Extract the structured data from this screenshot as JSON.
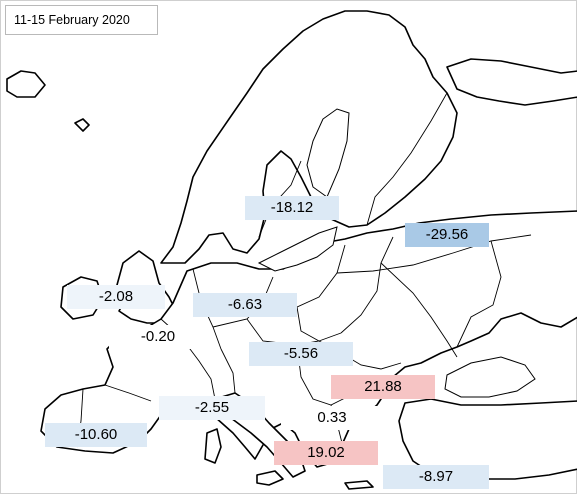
{
  "date_label": "11-15  February 2020",
  "colors": {
    "neg_light": "#dce9f5",
    "neg_faint": "#eef4fa",
    "neg_strong": "#a9c9e6",
    "pos": "#f6c4c4",
    "neutral": "#ffffff"
  },
  "regions": [
    {
      "id": "ireland-uk",
      "value": "-2.08",
      "tone": "neg_faint"
    },
    {
      "id": "france",
      "value": "-0.20",
      "tone": "neutral"
    },
    {
      "id": "germany",
      "value": "-6.63",
      "tone": "neg_light"
    },
    {
      "id": "nordic",
      "value": "-18.12",
      "tone": "neg_light"
    },
    {
      "id": "baltic-russia",
      "value": "-29.56",
      "tone": "neg_strong"
    },
    {
      "id": "austria-hungary",
      "value": "-5.56",
      "tone": "neg_light"
    },
    {
      "id": "italy",
      "value": "-2.55",
      "tone": "neg_faint"
    },
    {
      "id": "iberia",
      "value": "-10.60",
      "tone": "neg_light"
    },
    {
      "id": "balkans-romania",
      "value": "21.88",
      "tone": "pos"
    },
    {
      "id": "balkans-west",
      "value": "0.33",
      "tone": "neutral"
    },
    {
      "id": "greece",
      "value": "19.02",
      "tone": "pos"
    },
    {
      "id": "turkey",
      "value": "-8.97",
      "tone": "neg_light"
    }
  ]
}
